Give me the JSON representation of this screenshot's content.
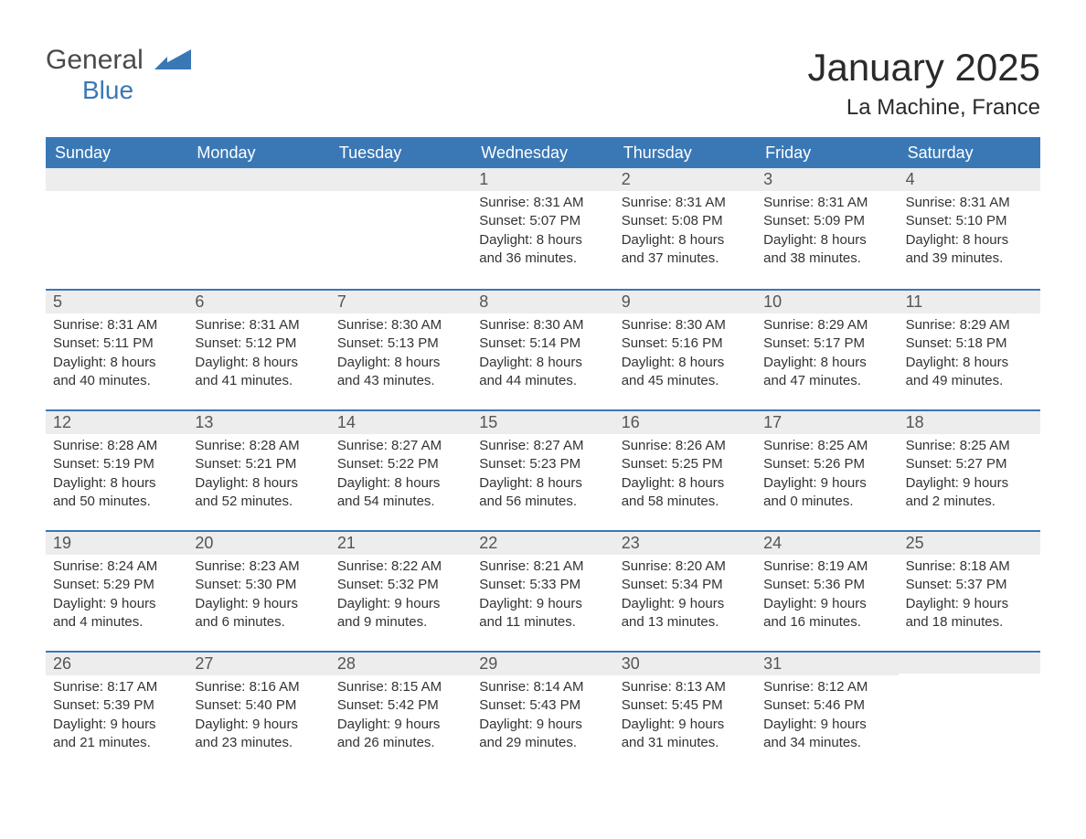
{
  "brand": {
    "line1": "General",
    "line2": "Blue",
    "accent": "#3a78b5",
    "textcolor": "#4a4a4a"
  },
  "title": "January 2025",
  "location": "La Machine, France",
  "colors": {
    "header_bg": "#3a78b5",
    "header_text": "#ffffff",
    "datebar_bg": "#ededed",
    "datebar_border": "#3a78b5",
    "text": "#333333"
  },
  "weekdays": [
    "Sunday",
    "Monday",
    "Tuesday",
    "Wednesday",
    "Thursday",
    "Friday",
    "Saturday"
  ],
  "layout": {
    "columns": 7,
    "rows": 5,
    "type": "calendar"
  },
  "days": [
    {
      "day": "",
      "sunrise": "",
      "sunset": "",
      "daylight1": "",
      "daylight2": ""
    },
    {
      "day": "",
      "sunrise": "",
      "sunset": "",
      "daylight1": "",
      "daylight2": ""
    },
    {
      "day": "",
      "sunrise": "",
      "sunset": "",
      "daylight1": "",
      "daylight2": ""
    },
    {
      "day": "1",
      "sunrise": "Sunrise: 8:31 AM",
      "sunset": "Sunset: 5:07 PM",
      "daylight1": "Daylight: 8 hours",
      "daylight2": "and 36 minutes."
    },
    {
      "day": "2",
      "sunrise": "Sunrise: 8:31 AM",
      "sunset": "Sunset: 5:08 PM",
      "daylight1": "Daylight: 8 hours",
      "daylight2": "and 37 minutes."
    },
    {
      "day": "3",
      "sunrise": "Sunrise: 8:31 AM",
      "sunset": "Sunset: 5:09 PM",
      "daylight1": "Daylight: 8 hours",
      "daylight2": "and 38 minutes."
    },
    {
      "day": "4",
      "sunrise": "Sunrise: 8:31 AM",
      "sunset": "Sunset: 5:10 PM",
      "daylight1": "Daylight: 8 hours",
      "daylight2": "and 39 minutes."
    },
    {
      "day": "5",
      "sunrise": "Sunrise: 8:31 AM",
      "sunset": "Sunset: 5:11 PM",
      "daylight1": "Daylight: 8 hours",
      "daylight2": "and 40 minutes."
    },
    {
      "day": "6",
      "sunrise": "Sunrise: 8:31 AM",
      "sunset": "Sunset: 5:12 PM",
      "daylight1": "Daylight: 8 hours",
      "daylight2": "and 41 minutes."
    },
    {
      "day": "7",
      "sunrise": "Sunrise: 8:30 AM",
      "sunset": "Sunset: 5:13 PM",
      "daylight1": "Daylight: 8 hours",
      "daylight2": "and 43 minutes."
    },
    {
      "day": "8",
      "sunrise": "Sunrise: 8:30 AM",
      "sunset": "Sunset: 5:14 PM",
      "daylight1": "Daylight: 8 hours",
      "daylight2": "and 44 minutes."
    },
    {
      "day": "9",
      "sunrise": "Sunrise: 8:30 AM",
      "sunset": "Sunset: 5:16 PM",
      "daylight1": "Daylight: 8 hours",
      "daylight2": "and 45 minutes."
    },
    {
      "day": "10",
      "sunrise": "Sunrise: 8:29 AM",
      "sunset": "Sunset: 5:17 PM",
      "daylight1": "Daylight: 8 hours",
      "daylight2": "and 47 minutes."
    },
    {
      "day": "11",
      "sunrise": "Sunrise: 8:29 AM",
      "sunset": "Sunset: 5:18 PM",
      "daylight1": "Daylight: 8 hours",
      "daylight2": "and 49 minutes."
    },
    {
      "day": "12",
      "sunrise": "Sunrise: 8:28 AM",
      "sunset": "Sunset: 5:19 PM",
      "daylight1": "Daylight: 8 hours",
      "daylight2": "and 50 minutes."
    },
    {
      "day": "13",
      "sunrise": "Sunrise: 8:28 AM",
      "sunset": "Sunset: 5:21 PM",
      "daylight1": "Daylight: 8 hours",
      "daylight2": "and 52 minutes."
    },
    {
      "day": "14",
      "sunrise": "Sunrise: 8:27 AM",
      "sunset": "Sunset: 5:22 PM",
      "daylight1": "Daylight: 8 hours",
      "daylight2": "and 54 minutes."
    },
    {
      "day": "15",
      "sunrise": "Sunrise: 8:27 AM",
      "sunset": "Sunset: 5:23 PM",
      "daylight1": "Daylight: 8 hours",
      "daylight2": "and 56 minutes."
    },
    {
      "day": "16",
      "sunrise": "Sunrise: 8:26 AM",
      "sunset": "Sunset: 5:25 PM",
      "daylight1": "Daylight: 8 hours",
      "daylight2": "and 58 minutes."
    },
    {
      "day": "17",
      "sunrise": "Sunrise: 8:25 AM",
      "sunset": "Sunset: 5:26 PM",
      "daylight1": "Daylight: 9 hours",
      "daylight2": "and 0 minutes."
    },
    {
      "day": "18",
      "sunrise": "Sunrise: 8:25 AM",
      "sunset": "Sunset: 5:27 PM",
      "daylight1": "Daylight: 9 hours",
      "daylight2": "and 2 minutes."
    },
    {
      "day": "19",
      "sunrise": "Sunrise: 8:24 AM",
      "sunset": "Sunset: 5:29 PM",
      "daylight1": "Daylight: 9 hours",
      "daylight2": "and 4 minutes."
    },
    {
      "day": "20",
      "sunrise": "Sunrise: 8:23 AM",
      "sunset": "Sunset: 5:30 PM",
      "daylight1": "Daylight: 9 hours",
      "daylight2": "and 6 minutes."
    },
    {
      "day": "21",
      "sunrise": "Sunrise: 8:22 AM",
      "sunset": "Sunset: 5:32 PM",
      "daylight1": "Daylight: 9 hours",
      "daylight2": "and 9 minutes."
    },
    {
      "day": "22",
      "sunrise": "Sunrise: 8:21 AM",
      "sunset": "Sunset: 5:33 PM",
      "daylight1": "Daylight: 9 hours",
      "daylight2": "and 11 minutes."
    },
    {
      "day": "23",
      "sunrise": "Sunrise: 8:20 AM",
      "sunset": "Sunset: 5:34 PM",
      "daylight1": "Daylight: 9 hours",
      "daylight2": "and 13 minutes."
    },
    {
      "day": "24",
      "sunrise": "Sunrise: 8:19 AM",
      "sunset": "Sunset: 5:36 PM",
      "daylight1": "Daylight: 9 hours",
      "daylight2": "and 16 minutes."
    },
    {
      "day": "25",
      "sunrise": "Sunrise: 8:18 AM",
      "sunset": "Sunset: 5:37 PM",
      "daylight1": "Daylight: 9 hours",
      "daylight2": "and 18 minutes."
    },
    {
      "day": "26",
      "sunrise": "Sunrise: 8:17 AM",
      "sunset": "Sunset: 5:39 PM",
      "daylight1": "Daylight: 9 hours",
      "daylight2": "and 21 minutes."
    },
    {
      "day": "27",
      "sunrise": "Sunrise: 8:16 AM",
      "sunset": "Sunset: 5:40 PM",
      "daylight1": "Daylight: 9 hours",
      "daylight2": "and 23 minutes."
    },
    {
      "day": "28",
      "sunrise": "Sunrise: 8:15 AM",
      "sunset": "Sunset: 5:42 PM",
      "daylight1": "Daylight: 9 hours",
      "daylight2": "and 26 minutes."
    },
    {
      "day": "29",
      "sunrise": "Sunrise: 8:14 AM",
      "sunset": "Sunset: 5:43 PM",
      "daylight1": "Daylight: 9 hours",
      "daylight2": "and 29 minutes."
    },
    {
      "day": "30",
      "sunrise": "Sunrise: 8:13 AM",
      "sunset": "Sunset: 5:45 PM",
      "daylight1": "Daylight: 9 hours",
      "daylight2": "and 31 minutes."
    },
    {
      "day": "31",
      "sunrise": "Sunrise: 8:12 AM",
      "sunset": "Sunset: 5:46 PM",
      "daylight1": "Daylight: 9 hours",
      "daylight2": "and 34 minutes."
    },
    {
      "day": "",
      "sunrise": "",
      "sunset": "",
      "daylight1": "",
      "daylight2": ""
    }
  ]
}
